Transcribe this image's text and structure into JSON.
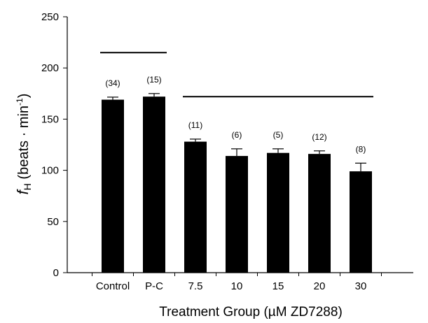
{
  "chart_data": {
    "type": "bar",
    "xlabel": "Treatment Group (µM ZD7288)",
    "ylabel_symbol": "f",
    "ylabel_subscript": "H",
    "ylabel_units": " (beats · min",
    "ylabel_units_sup": "-1",
    "ylabel_units_close": ")",
    "ylim": [
      0,
      250
    ],
    "yticks": [
      "0",
      "50",
      "100",
      "150",
      "200",
      "250"
    ],
    "categories": [
      "Control",
      "P-C",
      "7.5",
      "10",
      "15",
      "20",
      "30"
    ],
    "values": [
      169,
      172,
      128,
      114,
      117,
      116,
      99
    ],
    "errors": [
      2.5,
      3,
      2.5,
      7,
      4,
      3,
      8
    ],
    "sample_sizes": [
      "(34)",
      "(15)",
      "(11)",
      "(6)",
      "(5)",
      "(12)",
      "(8)"
    ],
    "grouping_lines": [
      {
        "from_category": 0,
        "to_category": 1,
        "y": 215
      },
      {
        "from_category": 2,
        "to_category": 6,
        "y": 172
      }
    ],
    "bar_color": "#000000",
    "grid": false,
    "legend": "none"
  }
}
